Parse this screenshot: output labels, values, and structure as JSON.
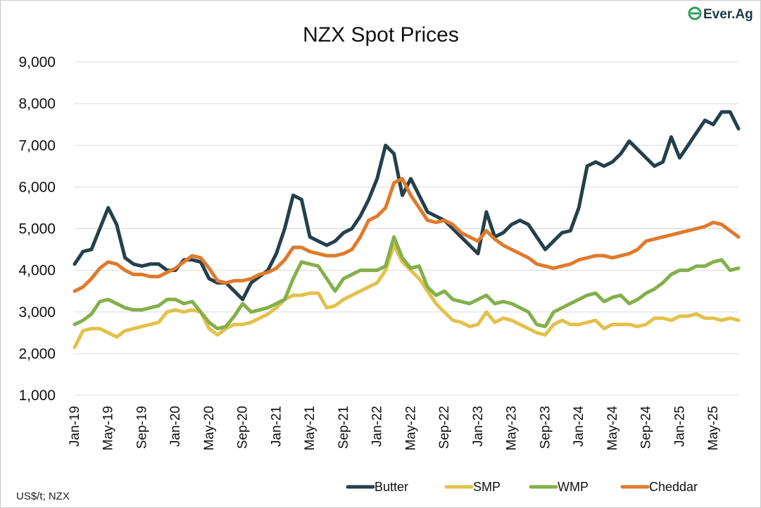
{
  "logo": {
    "text": "Ever.Ag",
    "color": "#1f3a44",
    "accent": "#2e9e5b"
  },
  "footer": {
    "source": "US$/t; NZX"
  },
  "chart_data": {
    "type": "line",
    "title": "NZX Spot Prices",
    "xlabel": "",
    "ylabel": "",
    "ylim": [
      1000,
      9000
    ],
    "yticks": [
      "1,000",
      "2,000",
      "3,000",
      "4,000",
      "5,000",
      "6,000",
      "7,000",
      "8,000",
      "9,000"
    ],
    "xticks": [
      "Jan-19",
      "May-19",
      "Sep-19",
      "Jan-20",
      "May-20",
      "Sep-20",
      "Jan-21",
      "May-21",
      "Sep-21",
      "Jan-22",
      "May-22",
      "Sep-22",
      "Jan-23",
      "May-23",
      "Sep-23",
      "Jan-24",
      "May-24",
      "Sep-24",
      "Jan-25",
      "May-25"
    ],
    "grid": "horizontal",
    "legend_position": "bottom",
    "x": [
      "Jan-19",
      "Feb-19",
      "Mar-19",
      "Apr-19",
      "May-19",
      "Jun-19",
      "Jul-19",
      "Aug-19",
      "Sep-19",
      "Oct-19",
      "Nov-19",
      "Dec-19",
      "Jan-20",
      "Feb-20",
      "Mar-20",
      "Apr-20",
      "May-20",
      "Jun-20",
      "Jul-20",
      "Aug-20",
      "Sep-20",
      "Oct-20",
      "Nov-20",
      "Dec-20",
      "Jan-21",
      "Feb-21",
      "Mar-21",
      "Apr-21",
      "May-21",
      "Jun-21",
      "Jul-21",
      "Aug-21",
      "Sep-21",
      "Oct-21",
      "Nov-21",
      "Dec-21",
      "Jan-22",
      "Feb-22",
      "Mar-22",
      "Apr-22",
      "May-22",
      "Jun-22",
      "Jul-22",
      "Aug-22",
      "Sep-22",
      "Oct-22",
      "Nov-22",
      "Dec-22",
      "Jan-23",
      "Feb-23",
      "Mar-23",
      "Apr-23",
      "May-23",
      "Jun-23",
      "Jul-23",
      "Aug-23",
      "Sep-23",
      "Oct-23",
      "Nov-23",
      "Dec-23",
      "Jan-24",
      "Feb-24",
      "Mar-24",
      "Apr-24",
      "May-24",
      "Jun-24",
      "Jul-24",
      "Aug-24",
      "Sep-24",
      "Oct-24",
      "Nov-24",
      "Dec-24",
      "Jan-25",
      "Feb-25",
      "Mar-25",
      "Apr-25",
      "May-25",
      "Jun-25",
      "Jul-25",
      "Aug-25"
    ],
    "series": [
      {
        "name": "Butter",
        "color": "#24404c",
        "values": [
          4150,
          4450,
          4500,
          5000,
          5500,
          5100,
          4300,
          4150,
          4100,
          4150,
          4150,
          4000,
          4000,
          4250,
          4250,
          4200,
          3800,
          3700,
          3700,
          3500,
          3300,
          3700,
          3850,
          4000,
          4400,
          5000,
          5800,
          5700,
          4800,
          4700,
          4600,
          4700,
          4900,
          5000,
          5300,
          5700,
          6200,
          7000,
          6800,
          5800,
          6200,
          5800,
          5400,
          5300,
          5200,
          5000,
          4800,
          4600,
          4400,
          5400,
          4800,
          4900,
          5100,
          5200,
          5100,
          4800,
          4500,
          4700,
          4900,
          4950,
          5500,
          6500,
          6600,
          6500,
          6600,
          6800,
          7100,
          6900,
          6700,
          6500,
          6600,
          7200,
          6700,
          7000,
          7300,
          7600,
          7500,
          7800,
          7800,
          7400
        ]
      },
      {
        "name": "SMP",
        "color": "#e3c14a",
        "values": [
          2150,
          2550,
          2600,
          2600,
          2500,
          2400,
          2550,
          2600,
          2650,
          2700,
          2750,
          3000,
          3050,
          3000,
          3050,
          3000,
          2600,
          2450,
          2600,
          2700,
          2700,
          2750,
          2850,
          2950,
          3100,
          3300,
          3400,
          3400,
          3450,
          3450,
          3100,
          3150,
          3300,
          3400,
          3500,
          3600,
          3700,
          4000,
          4600,
          4200,
          4000,
          3800,
          3500,
          3200,
          3000,
          2800,
          2750,
          2650,
          2700,
          3000,
          2750,
          2850,
          2800,
          2700,
          2600,
          2500,
          2450,
          2700,
          2800,
          2700,
          2700,
          2750,
          2800,
          2600,
          2700,
          2700,
          2700,
          2650,
          2700,
          2850,
          2850,
          2800,
          2900,
          2900,
          2950,
          2850,
          2850,
          2800,
          2850,
          2800
        ]
      },
      {
        "name": "WMP",
        "color": "#82b04a",
        "values": [
          2700,
          2800,
          2950,
          3250,
          3300,
          3200,
          3100,
          3050,
          3050,
          3100,
          3150,
          3300,
          3300,
          3200,
          3250,
          3000,
          2750,
          2600,
          2650,
          2900,
          3200,
          3000,
          3050,
          3100,
          3200,
          3300,
          3800,
          4200,
          4150,
          4100,
          3800,
          3500,
          3800,
          3900,
          4000,
          4000,
          4000,
          4100,
          4800,
          4300,
          4050,
          4100,
          3600,
          3400,
          3500,
          3300,
          3250,
          3200,
          3300,
          3400,
          3200,
          3250,
          3200,
          3100,
          3000,
          2700,
          2650,
          3000,
          3100,
          3200,
          3300,
          3400,
          3450,
          3250,
          3350,
          3400,
          3200,
          3300,
          3450,
          3550,
          3700,
          3900,
          4000,
          4000,
          4100,
          4100,
          4200,
          4250,
          4000,
          4050
        ]
      },
      {
        "name": "Cheddar",
        "color": "#e07a2c",
        "values": [
          3500,
          3600,
          3800,
          4050,
          4200,
          4150,
          4000,
          3900,
          3900,
          3850,
          3850,
          3950,
          4050,
          4200,
          4350,
          4300,
          4050,
          3750,
          3700,
          3750,
          3750,
          3800,
          3900,
          3950,
          4050,
          4250,
          4550,
          4550,
          4450,
          4400,
          4350,
          4350,
          4400,
          4500,
          4800,
          5200,
          5300,
          5500,
          6100,
          6200,
          5800,
          5500,
          5200,
          5150,
          5200,
          5100,
          4900,
          4800,
          4700,
          4950,
          4750,
          4600,
          4500,
          4400,
          4300,
          4150,
          4100,
          4050,
          4100,
          4150,
          4250,
          4300,
          4350,
          4350,
          4300,
          4350,
          4400,
          4500,
          4700,
          4750,
          4800,
          4850,
          4900,
          4950,
          5000,
          5050,
          5150,
          5100,
          4950,
          4800
        ]
      }
    ]
  }
}
